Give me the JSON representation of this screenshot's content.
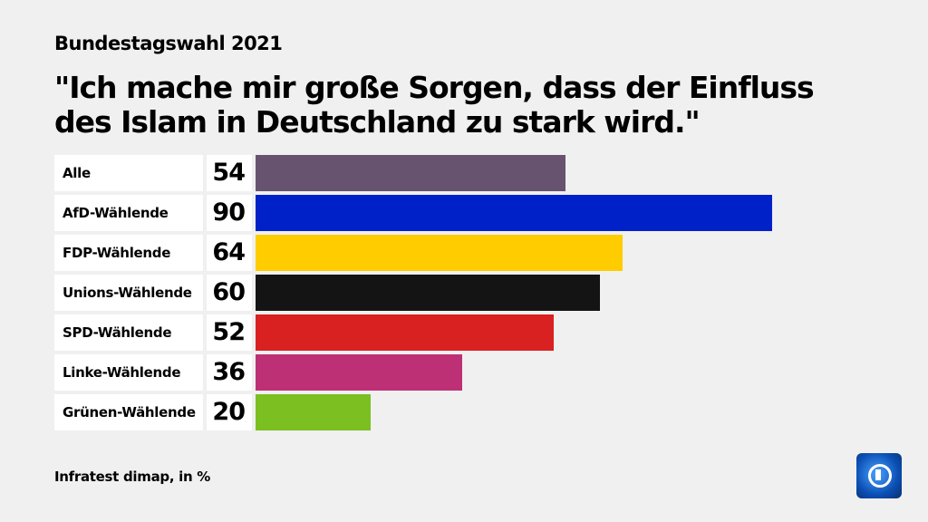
{
  "header": {
    "supertitle": "Bundestagswahl 2021",
    "title": "\"Ich mache mir große Sorgen, dass der Einfluss des Islam in Deutschland zu stark wird.\""
  },
  "footer": {
    "source": "Infratest dimap, in %",
    "logo": "tagesschau-logo"
  },
  "chart_data": {
    "type": "bar",
    "orientation": "horizontal",
    "title": "\"Ich mache mir große Sorgen, dass der Einfluss des Islam in Deutschland zu stark wird.\"",
    "categories": [
      "Alle",
      "AfD-Wählende",
      "FDP-Wählende",
      "Unions-Wählende",
      "SPD-Wählende",
      "Linke-Wählende",
      "Grünen-Wählende"
    ],
    "values": [
      54,
      90,
      64,
      60,
      52,
      36,
      20
    ],
    "colors": [
      "#67536f",
      "#0021c8",
      "#ffcc00",
      "#141414",
      "#d92121",
      "#be3075",
      "#7bbf20"
    ],
    "xlim": [
      0,
      100
    ],
    "grid": false
  }
}
